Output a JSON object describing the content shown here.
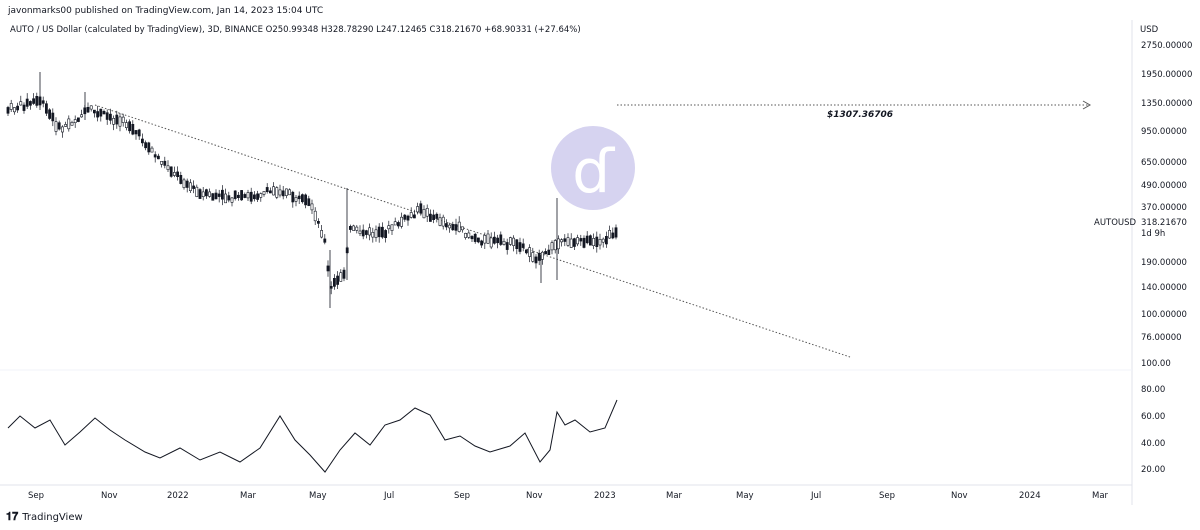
{
  "header": {
    "published": "javonmarks00 published on TradingView.com, Jan 14, 2023 15:04 UTC"
  },
  "legend": {
    "symbol": "AUTO / US Dollar (calculated by TradingView), 3D, BINANCE",
    "open": "O250.99348",
    "high": "H328.78290",
    "low": "L247.12465",
    "close": "C318.21670",
    "change": "+68.90331 (+27.64%)"
  },
  "price_axis": {
    "currency": "USD",
    "labels": [
      "2750.00000",
      "1950.00000",
      "1350.00000",
      "950.00000",
      "650.00000",
      "490.00000",
      "370.00000",
      "190.00000",
      "140.00000",
      "100.00000",
      "76.00000"
    ]
  },
  "last_price": {
    "symbol": "AUTOUSD",
    "value": "318.21670",
    "countdown": "1d 9h"
  },
  "target": {
    "label": "$1307.36706"
  },
  "oscillator_axis": {
    "labels": [
      "100.00",
      "80.00",
      "60.00",
      "40.00",
      "20.00"
    ]
  },
  "time_axis": {
    "labels": [
      "Sep",
      "Nov",
      "2022",
      "Mar",
      "May",
      "Jul",
      "Sep",
      "Nov",
      "2023",
      "Mar",
      "May",
      "Jul",
      "Sep",
      "Nov",
      "2024",
      "Mar"
    ]
  },
  "footer": {
    "brand": "TradingView"
  },
  "colors": {
    "candle": "#131722",
    "watermark": "#d6d3f0",
    "grid": "#f0f3fa"
  },
  "watermark_icon": "letter-d-icon"
}
